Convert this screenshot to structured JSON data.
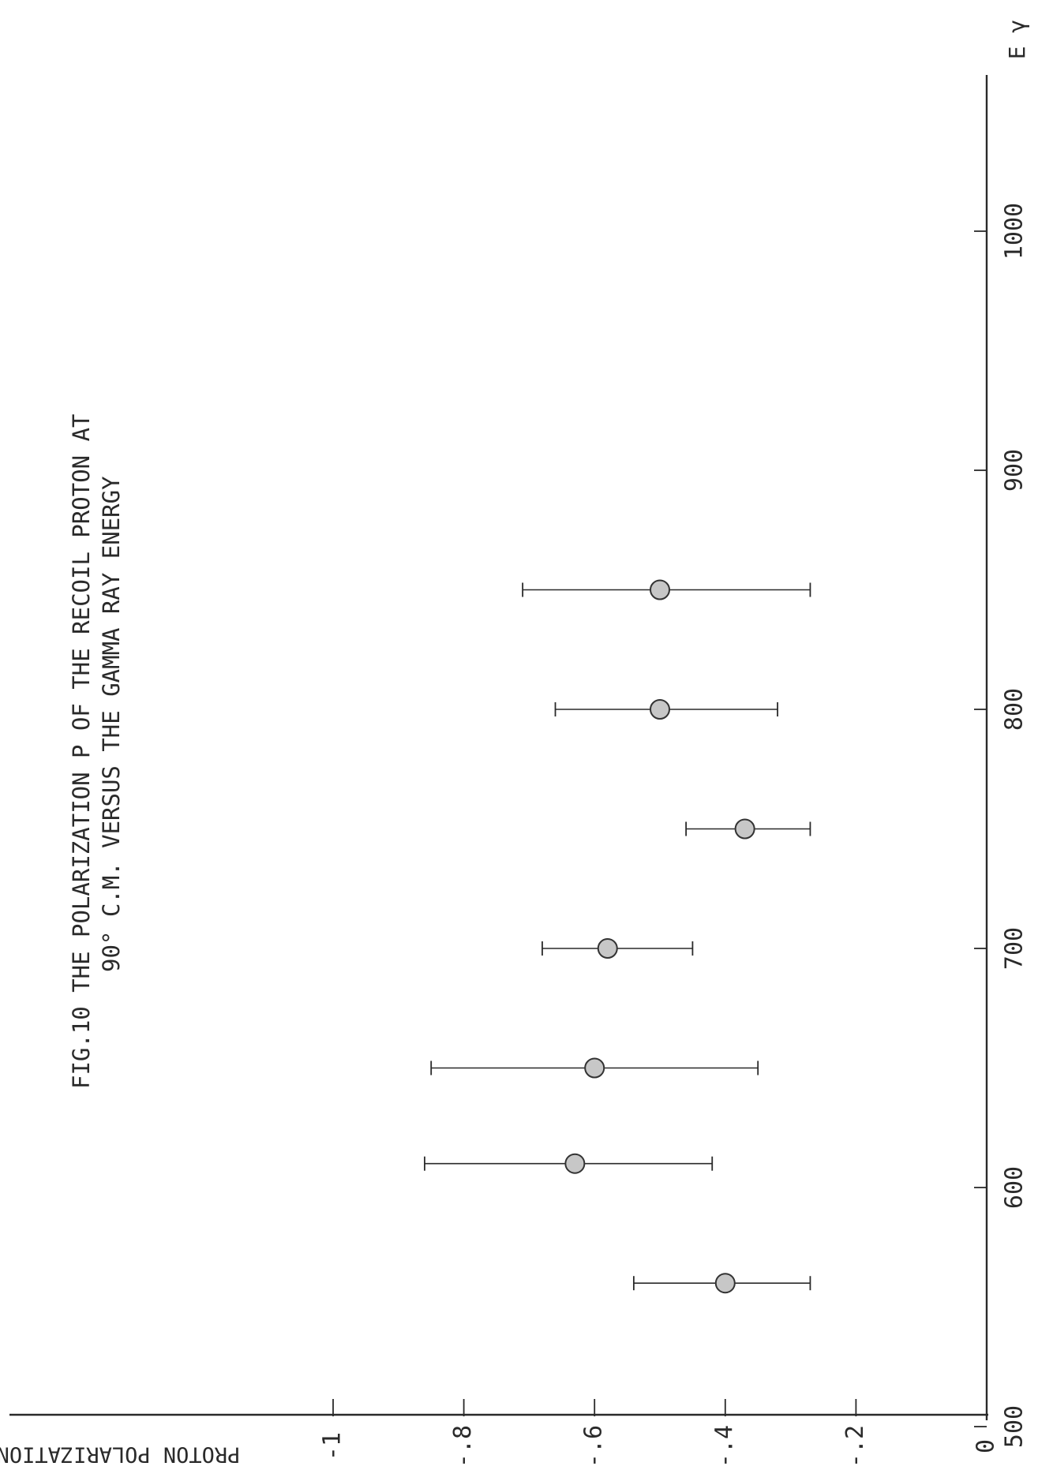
{
  "chart_data": {
    "type": "scatter",
    "title": [
      "FIG.10   THE POLARIZATION P OF THE RECOIL PROTON AT",
      "90° C.M. VERSUS THE GAMMA RAY ENERGY"
    ],
    "xlabel": "E γ",
    "ylabel": "PROTON POLARIZATION",
    "x_ticks": [
      500,
      600,
      700,
      800,
      900,
      1000
    ],
    "x_tick_labels": [
      "500",
      "600",
      "700",
      "800",
      "900",
      "1000"
    ],
    "y_ticks": [
      0,
      -0.2,
      -0.4,
      -0.6,
      -0.8,
      -1
    ],
    "y_tick_labels": [
      "0",
      "-.2",
      "-.4",
      "-.6",
      "-.8",
      "-1"
    ],
    "xlim": [
      480,
      1090
    ],
    "ylim": [
      0,
      -1.05
    ],
    "grid": false,
    "series": [
      {
        "x": [
          560,
          610,
          650,
          700,
          750,
          800,
          850
        ],
        "y": [
          -0.4,
          -0.63,
          -0.6,
          -0.58,
          -0.37,
          -0.5,
          -0.5
        ],
        "y_err_low": [
          -0.27,
          -0.42,
          -0.35,
          -0.45,
          -0.27,
          -0.32,
          -0.27
        ],
        "y_err_high": [
          -0.54,
          -0.86,
          -0.85,
          -0.68,
          -0.46,
          -0.66,
          -0.71
        ]
      }
    ]
  }
}
